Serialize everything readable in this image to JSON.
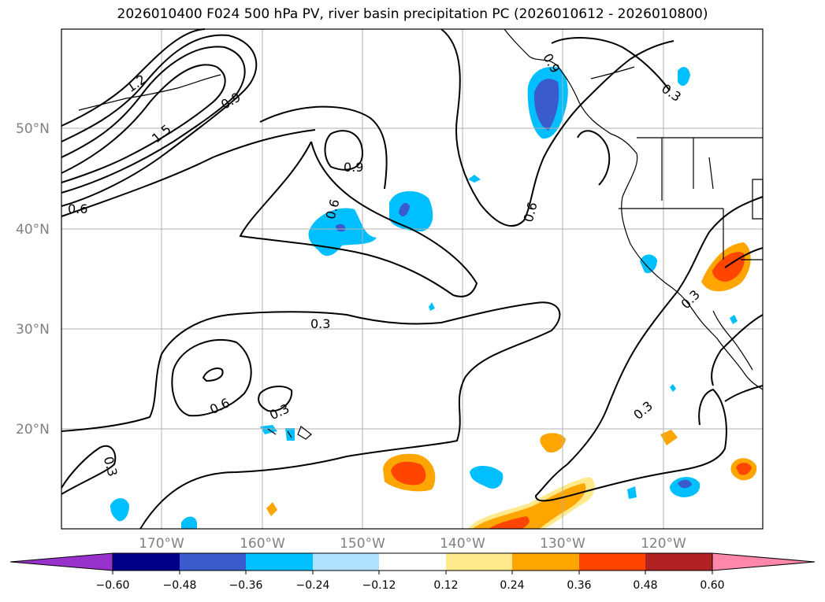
{
  "title": "2026010400 F024 500 hPa PV, river basin precipitation PC (2026010612 - 2026010800)",
  "map": {
    "lat_labels": [
      "50°N",
      "40°N",
      "30°N",
      "20°N"
    ],
    "lon_labels": [
      "170°W",
      "160°W",
      "150°W",
      "140°W",
      "130°W",
      "120°W"
    ],
    "contour_labels": [
      "1.2",
      "1.5",
      "0.9",
      "0.6",
      "0.9",
      "0.6",
      "0.6",
      "0.9",
      "0.3",
      "0.3",
      "0.6",
      "0.3",
      "0.3",
      "0.3",
      "0.3"
    ],
    "colors": {
      "contour": "#000000",
      "grid": "#b0b0b0",
      "coast": "#000000"
    }
  },
  "colorbar": {
    "levels": [
      "−0.60",
      "−0.48",
      "−0.36",
      "−0.24",
      "−0.12",
      "0.12",
      "0.24",
      "0.36",
      "0.48",
      "0.60"
    ],
    "colors": [
      "#9932cc",
      "#00008b",
      "#3a5bcc",
      "#00bfff",
      "#b0e2ff",
      "#ffffff",
      "#ffe98a",
      "#ffa500",
      "#ff4500",
      "#b22222",
      "#ff88aa"
    ]
  }
}
